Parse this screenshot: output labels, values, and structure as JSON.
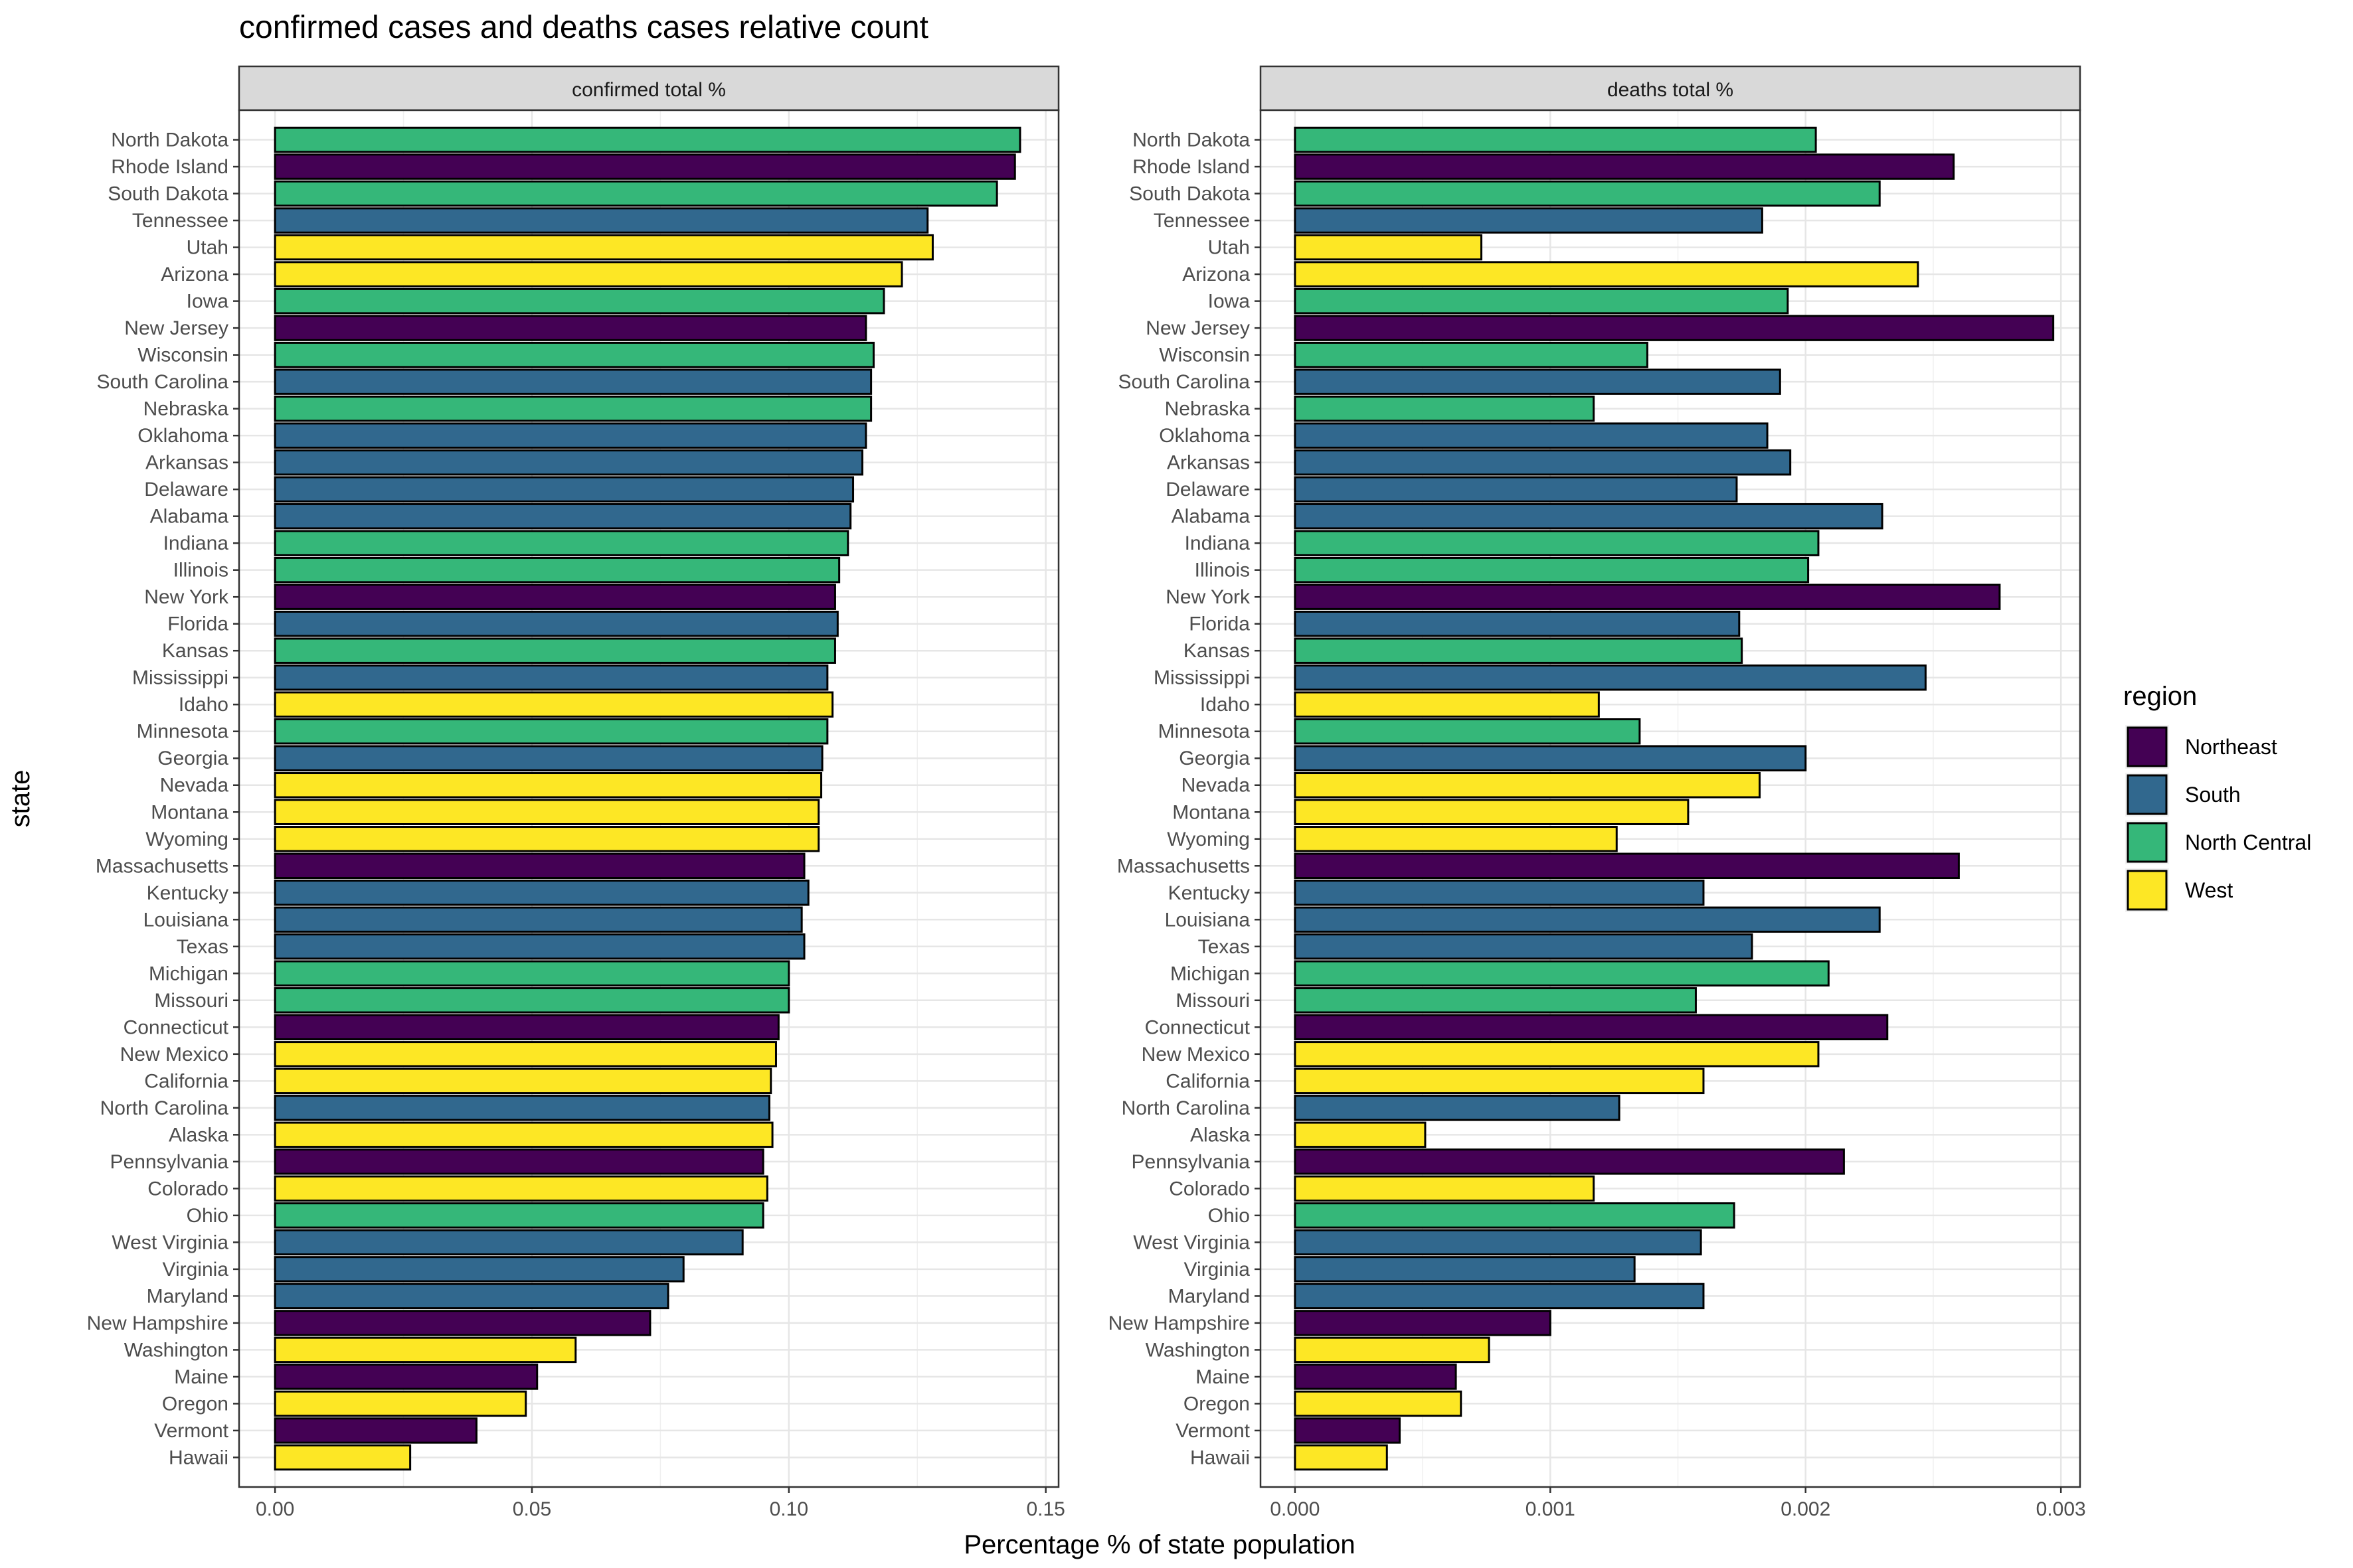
{
  "title": "confirmed cases and deaths cases relative count",
  "xlabel": "Percentage % of state population",
  "ylabel": "state",
  "legend": {
    "title": "region",
    "placement": "right",
    "items": [
      {
        "name": "Northeast",
        "color": "#440154"
      },
      {
        "name": "South",
        "color": "#31688E"
      },
      {
        "name": "North Central",
        "color": "#35B779"
      },
      {
        "name": "West",
        "color": "#FDE725"
      }
    ]
  },
  "chart_data": [
    {
      "type": "bar",
      "orientation": "horizontal",
      "title": "confirmed total %",
      "xlim": [
        -0.007,
        0.1525
      ],
      "ticks": [
        "0.00",
        "0.05",
        "0.10",
        "0.15"
      ],
      "tick_values": [
        0,
        0.05,
        0.1,
        0.15
      ],
      "grid": true,
      "categories": [
        "North Dakota",
        "Rhode Island",
        "South Dakota",
        "Tennessee",
        "Utah",
        "Arizona",
        "Iowa",
        "New Jersey",
        "Wisconsin",
        "South Carolina",
        "Nebraska",
        "Oklahoma",
        "Arkansas",
        "Delaware",
        "Alabama",
        "Indiana",
        "Illinois",
        "New York",
        "Florida",
        "Kansas",
        "Mississippi",
        "Idaho",
        "Minnesota",
        "Georgia",
        "Nevada",
        "Montana",
        "Wyoming",
        "Massachusetts",
        "Kentucky",
        "Louisiana",
        "Texas",
        "Michigan",
        "Missouri",
        "Connecticut",
        "New Mexico",
        "California",
        "North Carolina",
        "Alaska",
        "Pennsylvania",
        "Colorado",
        "Ohio",
        "West Virginia",
        "Virginia",
        "Maryland",
        "New Hampshire",
        "Washington",
        "Maine",
        "Oregon",
        "Vermont",
        "Hawaii"
      ],
      "regions": [
        "North Central",
        "Northeast",
        "North Central",
        "South",
        "West",
        "West",
        "North Central",
        "Northeast",
        "North Central",
        "South",
        "North Central",
        "South",
        "South",
        "South",
        "South",
        "North Central",
        "North Central",
        "Northeast",
        "South",
        "North Central",
        "South",
        "West",
        "North Central",
        "South",
        "West",
        "West",
        "West",
        "Northeast",
        "South",
        "South",
        "South",
        "North Central",
        "North Central",
        "Northeast",
        "West",
        "West",
        "South",
        "West",
        "Northeast",
        "West",
        "North Central",
        "South",
        "South",
        "South",
        "Northeast",
        "West",
        "Northeast",
        "West",
        "Northeast",
        "West"
      ],
      "values": [
        0.145,
        0.144,
        0.1405,
        0.127,
        0.128,
        0.122,
        0.1185,
        0.115,
        0.1165,
        0.116,
        0.116,
        0.115,
        0.1143,
        0.1125,
        0.112,
        0.1115,
        0.1098,
        0.109,
        0.1095,
        0.109,
        0.1075,
        0.1085,
        0.1075,
        0.1065,
        0.1063,
        0.1058,
        0.1058,
        0.103,
        0.1038,
        0.1025,
        0.103,
        0.1,
        0.1,
        0.098,
        0.0975,
        0.0965,
        0.0962,
        0.0968,
        0.095,
        0.0958,
        0.095,
        0.091,
        0.0795,
        0.0765,
        0.073,
        0.0585,
        0.051,
        0.0488,
        0.0392,
        0.0263
      ]
    },
    {
      "type": "bar",
      "orientation": "horizontal",
      "title": "deaths total %",
      "xlim": [
        -0.000135,
        0.003075
      ],
      "ticks": [
        "0.000",
        "0.001",
        "0.002",
        "0.003"
      ],
      "tick_values": [
        0,
        0.001,
        0.002,
        0.003
      ],
      "grid": true,
      "categories": [
        "North Dakota",
        "Rhode Island",
        "South Dakota",
        "Tennessee",
        "Utah",
        "Arizona",
        "Iowa",
        "New Jersey",
        "Wisconsin",
        "South Carolina",
        "Nebraska",
        "Oklahoma",
        "Arkansas",
        "Delaware",
        "Alabama",
        "Indiana",
        "Illinois",
        "New York",
        "Florida",
        "Kansas",
        "Mississippi",
        "Idaho",
        "Minnesota",
        "Georgia",
        "Nevada",
        "Montana",
        "Wyoming",
        "Massachusetts",
        "Kentucky",
        "Louisiana",
        "Texas",
        "Michigan",
        "Missouri",
        "Connecticut",
        "New Mexico",
        "California",
        "North Carolina",
        "Alaska",
        "Pennsylvania",
        "Colorado",
        "Ohio",
        "West Virginia",
        "Virginia",
        "Maryland",
        "New Hampshire",
        "Washington",
        "Maine",
        "Oregon",
        "Vermont",
        "Hawaii"
      ],
      "regions": [
        "North Central",
        "Northeast",
        "North Central",
        "South",
        "West",
        "West",
        "North Central",
        "Northeast",
        "North Central",
        "South",
        "North Central",
        "South",
        "South",
        "South",
        "South",
        "North Central",
        "North Central",
        "Northeast",
        "South",
        "North Central",
        "South",
        "West",
        "North Central",
        "South",
        "West",
        "West",
        "West",
        "Northeast",
        "South",
        "South",
        "South",
        "North Central",
        "North Central",
        "Northeast",
        "West",
        "West",
        "South",
        "West",
        "Northeast",
        "West",
        "North Central",
        "South",
        "South",
        "South",
        "Northeast",
        "West",
        "Northeast",
        "West",
        "Northeast",
        "West"
      ],
      "values": [
        0.00204,
        0.00258,
        0.00229,
        0.00183,
        0.00073,
        0.00244,
        0.00193,
        0.00297,
        0.00138,
        0.0019,
        0.00117,
        0.00185,
        0.00194,
        0.00173,
        0.0023,
        0.00205,
        0.00201,
        0.00276,
        0.00174,
        0.00175,
        0.00247,
        0.00119,
        0.00135,
        0.002,
        0.00182,
        0.00154,
        0.00126,
        0.0026,
        0.0016,
        0.00229,
        0.00179,
        0.00209,
        0.00157,
        0.00232,
        0.00205,
        0.0016,
        0.00127,
        0.00051,
        0.00215,
        0.00117,
        0.00172,
        0.00159,
        0.00133,
        0.0016,
        0.001,
        0.00076,
        0.00063,
        0.00065,
        0.00041,
        0.00036
      ]
    }
  ]
}
